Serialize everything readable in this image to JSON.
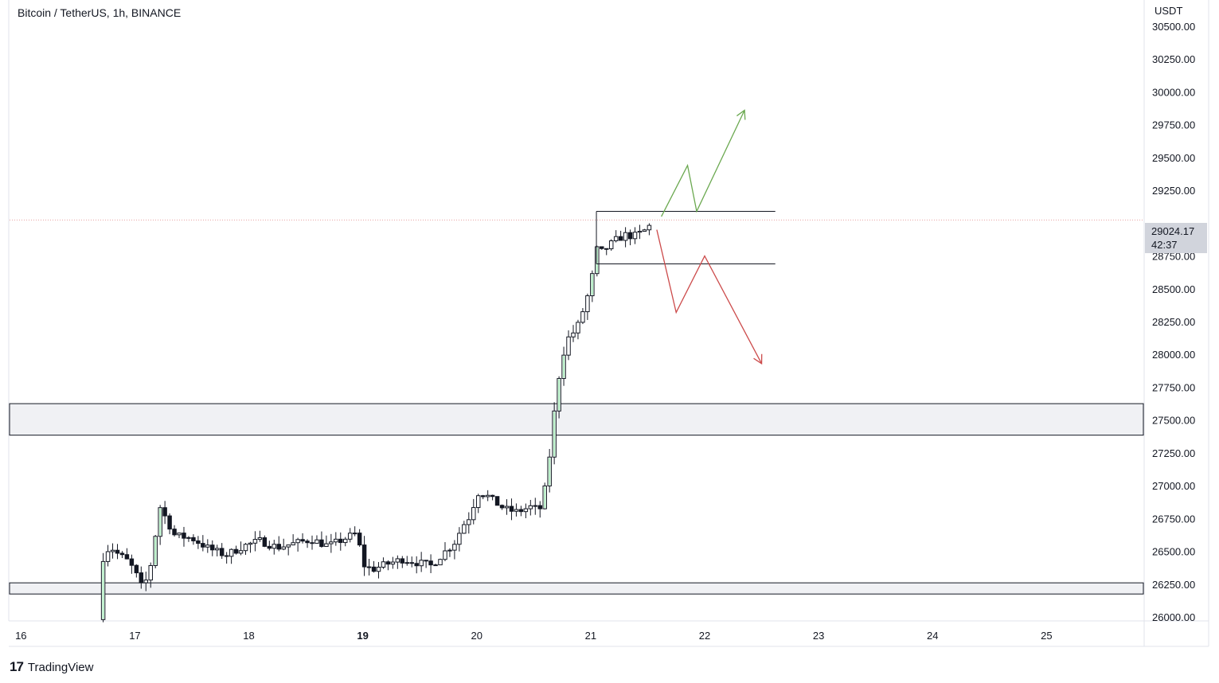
{
  "header": {
    "symbol_title": "Bitcoin / TetherUS, 1h, BINANCE"
  },
  "brand": {
    "name": "TradingView"
  },
  "price_tag": {
    "price": "29024.17",
    "countdown": "42:37"
  },
  "colors": {
    "up": "#26a69a",
    "down": "#131722",
    "wick": "#131722",
    "zone_fill": "#f0f1f4",
    "arrow_up": "#6aa84f",
    "arrow_down": "#cc4b4b",
    "last_price_line": "#e8a0a0",
    "tag_bg": "#d1d4dc"
  },
  "chart_data": {
    "type": "candlestick",
    "title": "Bitcoin / TetherUS, 1h, BINANCE",
    "ylabel": "USDT",
    "ylim": [
      25970,
      30700
    ],
    "xlim": [
      15.9,
      25.85
    ],
    "y_ticks": [
      26000,
      26250,
      26500,
      26750,
      27000,
      27250,
      27500,
      27750,
      28000,
      28250,
      28500,
      28750,
      29000,
      29250,
      29500,
      29750,
      30000,
      30250,
      30500
    ],
    "x_ticks": [
      {
        "x": 16,
        "label": "16",
        "bold": false
      },
      {
        "x": 17,
        "label": "17",
        "bold": false
      },
      {
        "x": 18,
        "label": "18",
        "bold": false
      },
      {
        "x": 19,
        "label": "19",
        "bold": true
      },
      {
        "x": 20,
        "label": "20",
        "bold": false
      },
      {
        "x": 21,
        "label": "21",
        "bold": false
      },
      {
        "x": 22,
        "label": "22",
        "bold": false
      },
      {
        "x": 23,
        "label": "23",
        "bold": false
      },
      {
        "x": 24,
        "label": "24",
        "bold": false
      },
      {
        "x": 25,
        "label": "25",
        "bold": false
      }
    ],
    "last_price": 29024.17,
    "candle_start_x": 16.68,
    "candle_step": 0.04167,
    "close_path": [
      [
        16.68,
        25980
      ],
      [
        16.72,
        26450
      ],
      [
        16.78,
        26540
      ],
      [
        16.85,
        26480
      ],
      [
        16.93,
        26430
      ],
      [
        17.0,
        26350
      ],
      [
        17.05,
        26230
      ],
      [
        17.12,
        26300
      ],
      [
        17.22,
        26840
      ],
      [
        17.35,
        26620
      ],
      [
        17.5,
        26600
      ],
      [
        17.65,
        26520
      ],
      [
        17.8,
        26470
      ],
      [
        17.95,
        26540
      ],
      [
        18.1,
        26580
      ],
      [
        18.25,
        26530
      ],
      [
        18.4,
        26560
      ],
      [
        18.55,
        26590
      ],
      [
        18.7,
        26540
      ],
      [
        18.85,
        26600
      ],
      [
        18.95,
        26640
      ],
      [
        19.0,
        26400
      ],
      [
        19.08,
        26360
      ],
      [
        19.2,
        26400
      ],
      [
        19.35,
        26440
      ],
      [
        19.5,
        26410
      ],
      [
        19.6,
        26390
      ],
      [
        19.7,
        26480
      ],
      [
        19.8,
        26560
      ],
      [
        19.88,
        26700
      ],
      [
        19.95,
        26780
      ],
      [
        20.0,
        26950
      ],
      [
        20.08,
        26930
      ],
      [
        20.15,
        26880
      ],
      [
        20.25,
        26820
      ],
      [
        20.35,
        26800
      ],
      [
        20.48,
        26840
      ],
      [
        20.55,
        26810
      ],
      [
        20.6,
        26980
      ],
      [
        20.65,
        27300
      ],
      [
        20.7,
        27720
      ],
      [
        20.75,
        27980
      ],
      [
        20.8,
        28120
      ],
      [
        20.88,
        28200
      ],
      [
        20.95,
        28380
      ],
      [
        21.0,
        28520
      ],
      [
        21.05,
        28800
      ],
      [
        21.1,
        28780
      ],
      [
        21.15,
        28820
      ],
      [
        21.22,
        28870
      ],
      [
        21.3,
        28910
      ],
      [
        21.38,
        28900
      ],
      [
        21.45,
        28930
      ],
      [
        21.5,
        28960
      ],
      [
        21.55,
        29020
      ]
    ],
    "zones": [
      {
        "top": 27625,
        "bottom": 27385
      },
      {
        "top": 26260,
        "bottom": 26175
      }
    ],
    "range_box": {
      "x_start": 21.05,
      "x_end": 22.62,
      "top": 29090,
      "bottom": 28690
    },
    "projections": [
      {
        "name": "bullish",
        "color_key": "arrow_up",
        "points": [
          [
            21.62,
            29050
          ],
          [
            21.85,
            29440
          ],
          [
            21.93,
            29090
          ],
          [
            22.35,
            29860
          ]
        ]
      },
      {
        "name": "bearish",
        "color_key": "arrow_down",
        "points": [
          [
            21.58,
            28950
          ],
          [
            21.75,
            28320
          ],
          [
            22.0,
            28750
          ],
          [
            22.5,
            27930
          ]
        ]
      }
    ]
  }
}
